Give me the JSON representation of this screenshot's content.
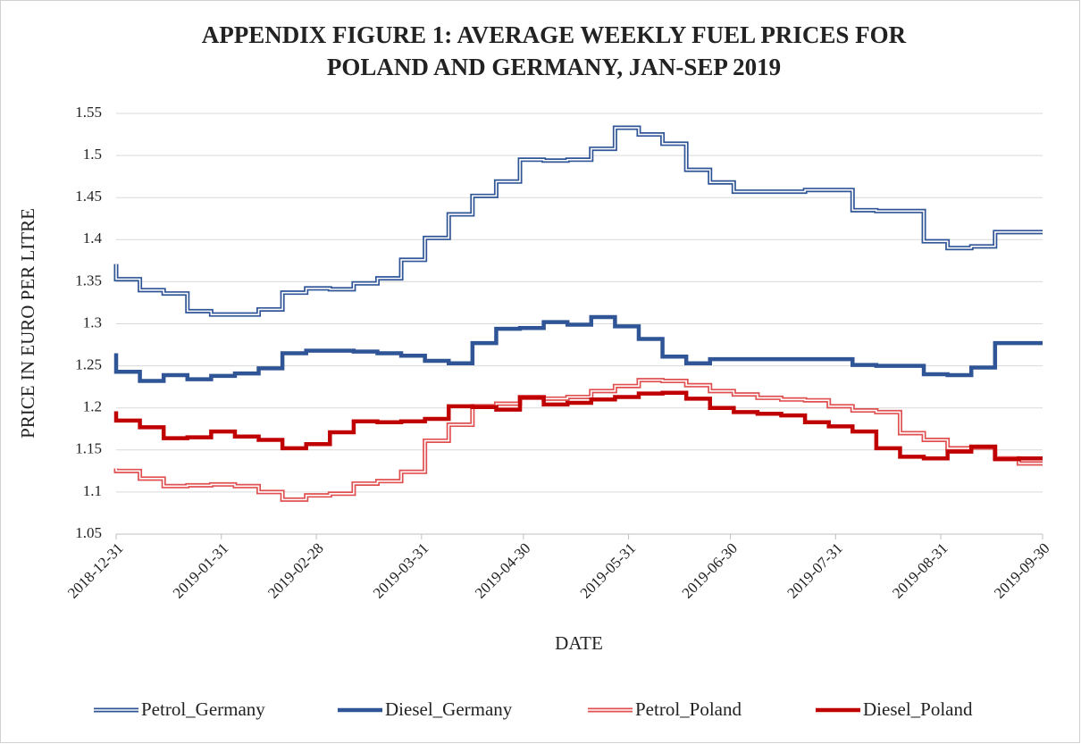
{
  "chart_data": {
    "type": "line",
    "line_style": "step",
    "title": "APPENDIX FIGURE 1: AVERAGE WEEKLY FUEL PRICES FOR POLAND AND GERMANY, JAN-SEP 2019",
    "xlabel": "DATE",
    "ylabel": "PRICE IN EURO PER LITRE",
    "x": [
      "2018-12-31",
      "2019-01-07",
      "2019-01-14",
      "2019-01-21",
      "2019-01-28",
      "2019-02-04",
      "2019-02-11",
      "2019-02-18",
      "2019-02-25",
      "2019-03-04",
      "2019-03-11",
      "2019-03-18",
      "2019-03-25",
      "2019-04-01",
      "2019-04-08",
      "2019-04-15",
      "2019-04-22",
      "2019-04-29",
      "2019-05-06",
      "2019-05-13",
      "2019-05-20",
      "2019-05-27",
      "2019-06-03",
      "2019-06-10",
      "2019-06-17",
      "2019-06-24",
      "2019-07-01",
      "2019-07-08",
      "2019-07-15",
      "2019-07-22",
      "2019-07-29",
      "2019-08-05",
      "2019-08-12",
      "2019-08-19",
      "2019-08-26",
      "2019-09-02",
      "2019-09-09",
      "2019-09-16",
      "2019-09-23",
      "2019-09-30"
    ],
    "series": [
      {
        "name": "Petrol_Germany",
        "color": "#2f5597",
        "style": "double",
        "values": [
          1.371,
          1.353,
          1.34,
          1.336,
          1.315,
          1.311,
          1.311,
          1.317,
          1.337,
          1.342,
          1.341,
          1.348,
          1.354,
          1.376,
          1.402,
          1.43,
          1.452,
          1.469,
          1.495,
          1.494,
          1.495,
          1.508,
          1.533,
          1.525,
          1.514,
          1.483,
          1.468,
          1.457,
          1.457,
          1.457,
          1.459,
          1.459,
          1.435,
          1.434,
          1.434,
          1.398,
          1.39,
          1.392,
          1.409,
          1.409
        ]
      },
      {
        "name": "Diesel_Germany",
        "color": "#2f5597",
        "style": "solid",
        "values": [
          1.265,
          1.243,
          1.232,
          1.239,
          1.234,
          1.238,
          1.241,
          1.247,
          1.265,
          1.268,
          1.268,
          1.267,
          1.265,
          1.262,
          1.256,
          1.253,
          1.277,
          1.294,
          1.295,
          1.302,
          1.299,
          1.308,
          1.297,
          1.282,
          1.261,
          1.253,
          1.258,
          1.258,
          1.258,
          1.258,
          1.258,
          1.258,
          1.251,
          1.25,
          1.25,
          1.24,
          1.239,
          1.248,
          1.277,
          1.277
        ]
      },
      {
        "name": "Petrol_Poland",
        "color": "#e05050",
        "style": "double",
        "values": [
          1.128,
          1.125,
          1.116,
          1.107,
          1.108,
          1.109,
          1.107,
          1.1,
          1.091,
          1.096,
          1.098,
          1.11,
          1.113,
          1.124,
          1.161,
          1.18,
          1.202,
          1.205,
          1.213,
          1.211,
          1.213,
          1.22,
          1.226,
          1.233,
          1.232,
          1.227,
          1.22,
          1.216,
          1.212,
          1.21,
          1.209,
          1.202,
          1.197,
          1.195,
          1.17,
          1.162,
          1.152,
          1.153,
          1.14,
          1.134
        ]
      },
      {
        "name": "Diesel_Poland",
        "color": "#c00000",
        "style": "solid",
        "values": [
          1.196,
          1.185,
          1.177,
          1.164,
          1.165,
          1.172,
          1.166,
          1.162,
          1.152,
          1.157,
          1.171,
          1.184,
          1.183,
          1.184,
          1.187,
          1.202,
          1.201,
          1.198,
          1.212,
          1.204,
          1.206,
          1.21,
          1.213,
          1.217,
          1.218,
          1.211,
          1.2,
          1.195,
          1.193,
          1.191,
          1.183,
          1.178,
          1.172,
          1.152,
          1.142,
          1.14,
          1.148,
          1.154,
          1.139,
          1.14
        ]
      }
    ],
    "xlim": [
      "2018-12-31",
      "2019-09-30"
    ],
    "xticks": [
      "2018-12-31",
      "2019-01-31",
      "2019-02-28",
      "2019-03-31",
      "2019-04-30",
      "2019-05-31",
      "2019-06-30",
      "2019-07-31",
      "2019-08-31",
      "2019-09-30"
    ],
    "ylim": [
      1.05,
      1.55
    ],
    "yticks": [
      1.05,
      1.1,
      1.15,
      1.2,
      1.25,
      1.3,
      1.35,
      1.4,
      1.45,
      1.5,
      1.55
    ],
    "grid": true,
    "legend": "bottom"
  }
}
